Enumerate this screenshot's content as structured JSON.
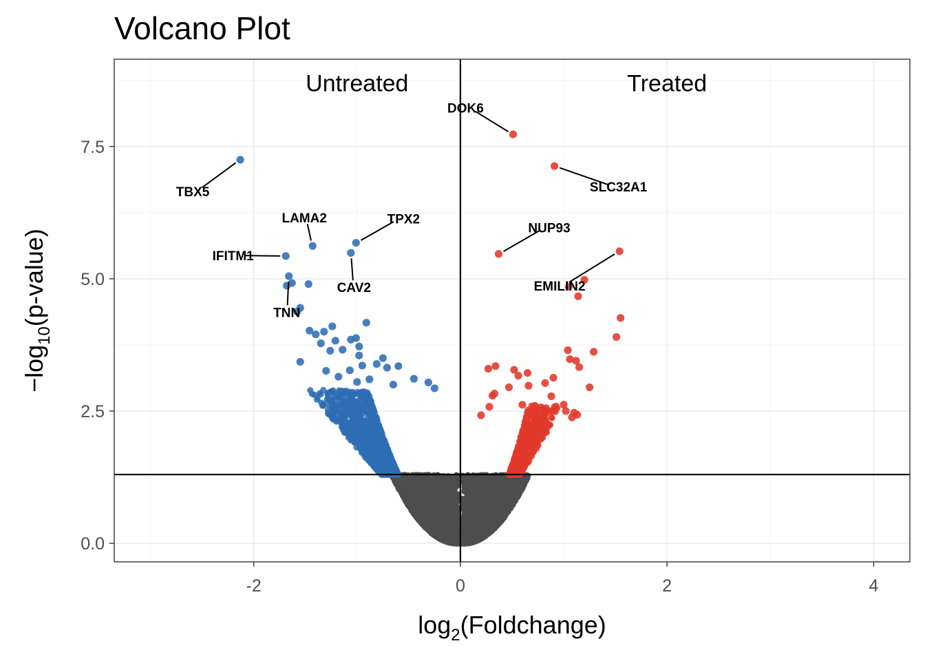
{
  "chart_data": {
    "type": "scatter",
    "title": "Volcano Plot",
    "xlabel": "log2(Foldchange)",
    "xlabel_parts": {
      "pre": "log",
      "sub": "2",
      "post": "(Foldchange)"
    },
    "ylabel": "-log10(p-value)",
    "ylabel_parts": {
      "pre": "−log",
      "sub": "10",
      "post": "(p-value)"
    },
    "xlim": [
      -3.35,
      4.35
    ],
    "ylim": [
      -0.35,
      9.15
    ],
    "x_ticks": [
      -2,
      0,
      2,
      4
    ],
    "x_tick_labels": [
      "-2",
      "0",
      "2",
      "4"
    ],
    "y_ticks": [
      0,
      2.5,
      5,
      7.5
    ],
    "y_tick_labels": [
      "0.0",
      "2.5",
      "5.0",
      "7.5"
    ],
    "grid": true,
    "vline_x": 0,
    "hline_y": 1.3,
    "region_labels": [
      {
        "text": "Untreated",
        "x": -1,
        "y": 8.7
      },
      {
        "text": "Treated",
        "x": 2,
        "y": 8.7
      }
    ],
    "colors": {
      "down": "#2e6db4",
      "up": "#e0392a",
      "ns": "#4d4d4d"
    },
    "series": [
      {
        "name": "down",
        "color": "#2e6db4",
        "points": [
          [
            -2.13,
            7.25
          ],
          [
            -1.69,
            5.43
          ],
          [
            -1.66,
            5.05
          ],
          [
            -1.63,
            4.92
          ],
          [
            -1.68,
            4.87
          ],
          [
            -1.47,
            4.9
          ],
          [
            -1.55,
            4.45
          ],
          [
            -1.58,
            4.38
          ],
          [
            -1.43,
            5.62
          ],
          [
            -1.06,
            5.49
          ],
          [
            -1.01,
            5.68
          ],
          [
            -0.91,
            4.17
          ],
          [
            -1.46,
            4.02
          ],
          [
            -1.4,
            3.95
          ],
          [
            -1.32,
            4.0
          ],
          [
            -1.24,
            4.1
          ],
          [
            -1.21,
            3.83
          ],
          [
            -1.06,
            3.85
          ],
          [
            -1.01,
            3.88
          ],
          [
            -0.98,
            3.72
          ],
          [
            -1.35,
            3.78
          ],
          [
            -1.26,
            3.64
          ],
          [
            -1.14,
            3.66
          ],
          [
            -0.98,
            3.55
          ],
          [
            -0.75,
            3.5
          ],
          [
            -0.95,
            3.36
          ],
          [
            -0.81,
            3.39
          ],
          [
            -0.6,
            3.35
          ],
          [
            -0.71,
            3.32
          ],
          [
            -1.55,
            3.43
          ],
          [
            -1.3,
            3.26
          ],
          [
            -1.18,
            3.15
          ],
          [
            -1.07,
            3.27
          ],
          [
            -0.45,
            3.11
          ],
          [
            -0.31,
            3.04
          ],
          [
            -0.25,
            2.93
          ],
          [
            -0.65,
            3.0
          ],
          [
            -0.88,
            3.1
          ],
          [
            -1.0,
            3.05
          ]
        ]
      },
      {
        "name": "up",
        "color": "#e0392a",
        "points": [
          [
            0.51,
            7.73
          ],
          [
            0.91,
            7.13
          ],
          [
            0.37,
            5.47
          ],
          [
            1.54,
            5.52
          ],
          [
            1.2,
            4.98
          ],
          [
            1.05,
            4.85
          ],
          [
            1.14,
            4.67
          ],
          [
            1.55,
            4.26
          ],
          [
            1.51,
            3.9
          ],
          [
            1.04,
            3.65
          ],
          [
            1.29,
            3.62
          ],
          [
            1.06,
            3.48
          ],
          [
            1.12,
            3.45
          ],
          [
            1.15,
            3.33
          ],
          [
            0.34,
            3.35
          ],
          [
            0.27,
            3.3
          ],
          [
            0.52,
            3.28
          ],
          [
            0.65,
            3.22
          ],
          [
            0.56,
            3.17
          ],
          [
            0.9,
            3.13
          ],
          [
            0.82,
            3.03
          ],
          [
            0.66,
            2.98
          ],
          [
            1.25,
            2.95
          ],
          [
            0.47,
            2.95
          ],
          [
            0.33,
            2.83
          ],
          [
            0.31,
            2.79
          ],
          [
            0.88,
            2.78
          ],
          [
            0.6,
            2.62
          ],
          [
            0.72,
            2.6
          ],
          [
            1.0,
            2.62
          ],
          [
            0.78,
            2.57
          ],
          [
            1.02,
            2.5
          ],
          [
            1.1,
            2.47
          ],
          [
            1.13,
            2.43
          ],
          [
            1.08,
            2.38
          ],
          [
            0.28,
            2.58
          ],
          [
            0.2,
            2.42
          ]
        ]
      }
    ],
    "annotations": [
      {
        "gene": "TBX5",
        "x": -2.13,
        "y": 7.25,
        "lx": -2.59,
        "ly": 6.65
      },
      {
        "gene": "DOK6",
        "x": 0.51,
        "y": 7.73,
        "lx": 0.05,
        "ly": 8.23
      },
      {
        "gene": "SLC32A1",
        "x": 0.91,
        "y": 7.13,
        "lx": 1.53,
        "ly": 6.74
      },
      {
        "gene": "LAMA2",
        "x": -1.43,
        "y": 5.62,
        "lx": -1.51,
        "ly": 6.16
      },
      {
        "gene": "TPX2",
        "x": -1.01,
        "y": 5.68,
        "lx": -0.55,
        "ly": 6.14
      },
      {
        "gene": "NUP93",
        "x": 0.37,
        "y": 5.47,
        "lx": 0.86,
        "ly": 5.97
      },
      {
        "gene": "IFITM1",
        "x": -1.69,
        "y": 5.43,
        "lx": -2.2,
        "ly": 5.44
      },
      {
        "gene": "CAV2",
        "x": -1.06,
        "y": 5.49,
        "lx": -1.03,
        "ly": 4.84
      },
      {
        "gene": "EMILIN2",
        "x": 1.54,
        "y": 5.52,
        "lx": 0.96,
        "ly": 4.87
      },
      {
        "gene": "TNN",
        "x": -1.66,
        "y": 5.05,
        "lx": -1.68,
        "ly": 4.37
      }
    ],
    "ns_points": 9000,
    "down_points": 1400,
    "up_points": 700
  }
}
